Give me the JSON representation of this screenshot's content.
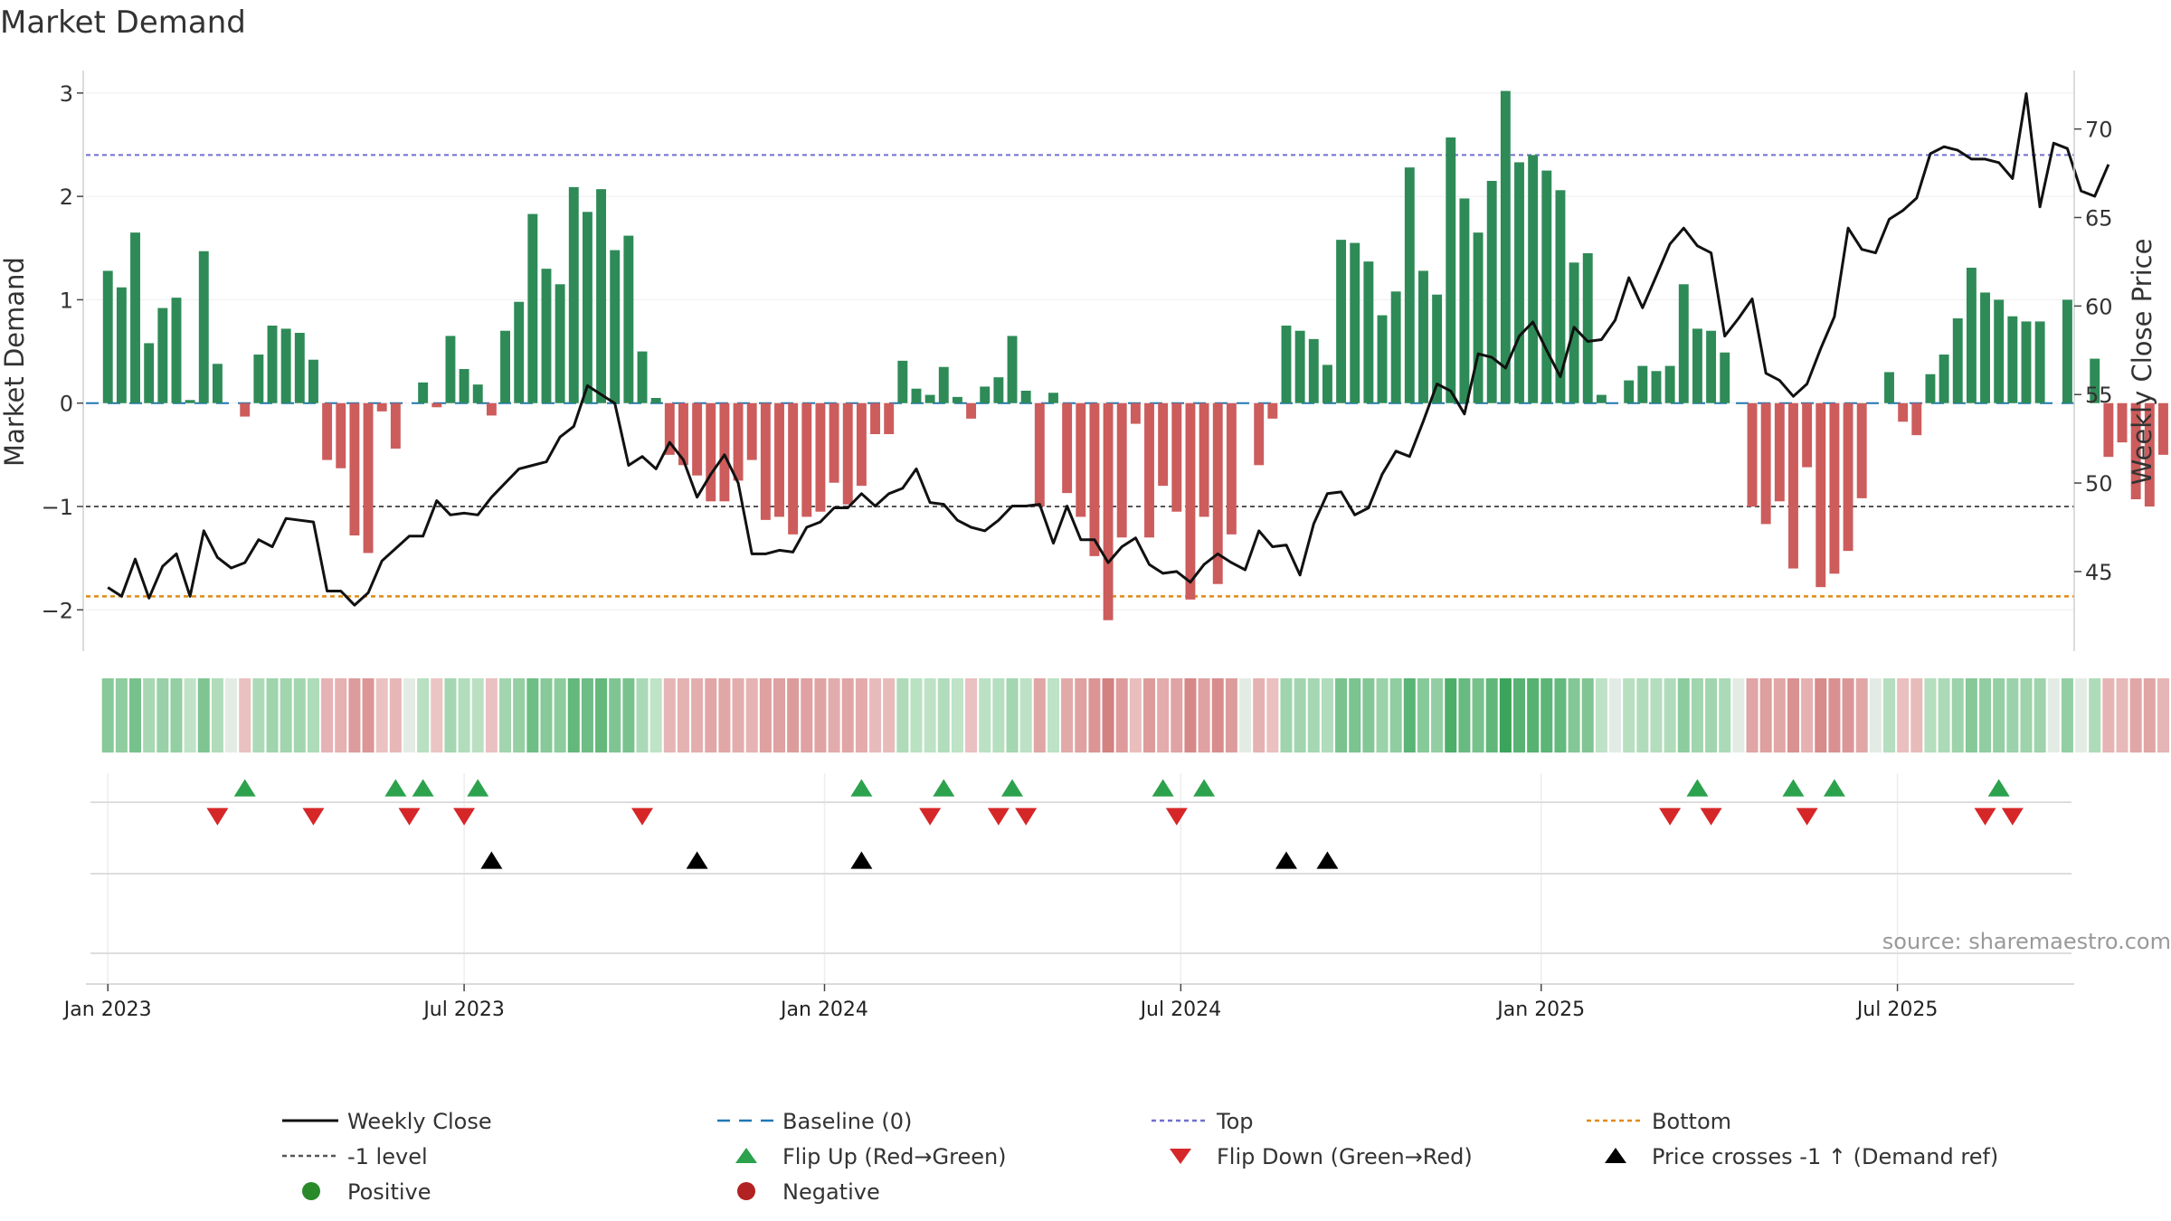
{
  "chart_data": {
    "type": "bar",
    "title": "Market Demand",
    "ylabel_left": "Market Demand",
    "ylabel_right": "Weekly Close Price",
    "left_axis": {
      "ylim": [
        -2.4,
        3.2
      ],
      "ticks": [
        -2,
        -1,
        0,
        1,
        2,
        3
      ],
      "tick_labels": [
        "−2",
        "−1",
        "0",
        "1",
        "2",
        "3"
      ]
    },
    "right_axis": {
      "ylim": [
        40.5,
        73.2
      ],
      "ticks": [
        45,
        50,
        55,
        60,
        65,
        70
      ],
      "tick_labels": [
        "45",
        "50",
        "55",
        "60",
        "65",
        "70"
      ]
    },
    "x_range_weeks": [
      -1.6,
      143.5
    ],
    "x_ticks": [
      {
        "label": "Jan 2023",
        "week": 0
      },
      {
        "label": "Jul 2023",
        "week": 26
      },
      {
        "label": "Jan 2024",
        "week": 52.3
      },
      {
        "label": "Jul 2024",
        "week": 78.3
      },
      {
        "label": "Jan 2025",
        "week": 104.6
      },
      {
        "label": "Jul 2025",
        "week": 130.6
      }
    ],
    "reference_lines": {
      "top": 2.4,
      "minus_one_level": -1,
      "bottom": -1.87,
      "baseline": 0
    },
    "demand": [
      1.28,
      1.12,
      1.65,
      0.58,
      0.92,
      1.02,
      0.03,
      1.47,
      0.38,
      0,
      -0.13,
      0.47,
      0.75,
      0.72,
      0.68,
      0.42,
      -0.55,
      -0.63,
      -1.28,
      -1.45,
      -0.08,
      -0.44,
      0,
      0.2,
      -0.04,
      0.65,
      0.33,
      0.18,
      -0.12,
      0.7,
      0.98,
      1.83,
      1.3,
      1.15,
      2.09,
      1.85,
      2.07,
      1.48,
      1.62,
      0.5,
      0.05,
      -0.5,
      -0.6,
      -0.7,
      -0.95,
      -0.95,
      -0.75,
      -0.55,
      -1.13,
      -1.1,
      -1.27,
      -1.1,
      -1.05,
      -0.77,
      -0.98,
      -0.8,
      -0.3,
      -0.3,
      0.41,
      0.14,
      0.08,
      0.35,
      0.06,
      -0.15,
      0.16,
      0.25,
      0.65,
      0.12,
      -1,
      0.1,
      -0.87,
      -1.1,
      -1.48,
      -2.1,
      -1.3,
      -0.2,
      -1.3,
      -0.8,
      -1.05,
      -1.9,
      -1.1,
      -1.75,
      -1.27,
      0,
      -0.6,
      -0.15,
      0.75,
      0.7,
      0.62,
      0.37,
      1.58,
      1.55,
      1.37,
      0.85,
      1.08,
      2.28,
      1.28,
      1.05,
      2.57,
      1.98,
      1.65,
      2.15,
      3.02,
      2.33,
      2.4,
      2.25,
      2.06,
      1.36,
      1.45,
      0.08,
      0,
      0.22,
      0.36,
      0.31,
      0.36,
      1.15,
      0.72,
      0.7,
      0.49,
      0,
      -1,
      -1.17,
      -0.95,
      -1.6,
      -0.62,
      -1.78,
      -1.65,
      -1.43,
      -0.92,
      0,
      0.3,
      -0.18,
      -0.31,
      0.28,
      0.47,
      0.82,
      1.31,
      1.07,
      1.0,
      0.84,
      0.79,
      0.79,
      0,
      1.0,
      0,
      0.43,
      -0.52,
      -0.38,
      -0.93,
      -1.0,
      -0.5
    ],
    "weekly_close": [
      44.1,
      43.6,
      45.7,
      43.5,
      45.3,
      46.0,
      43.6,
      47.3,
      45.8,
      45.2,
      45.5,
      46.8,
      46.4,
      48.0,
      47.9,
      47.8,
      43.9,
      43.9,
      43.1,
      43.8,
      45.6,
      46.3,
      47.0,
      47.0,
      49.0,
      48.2,
      48.3,
      48.2,
      49.2,
      50.0,
      50.8,
      51.0,
      51.2,
      52.6,
      53.2,
      55.5,
      55.0,
      54.5,
      51.0,
      51.5,
      50.8,
      52.3,
      51.3,
      49.2,
      50.5,
      51.6,
      50.0,
      46.0,
      46.0,
      46.2,
      46.1,
      47.5,
      47.8,
      48.6,
      48.6,
      49.4,
      48.7,
      49.4,
      49.7,
      50.8,
      48.9,
      48.8,
      47.9,
      47.5,
      47.3,
      47.9,
      48.7,
      48.7,
      48.8,
      46.6,
      48.7,
      46.8,
      46.8,
      45.5,
      46.4,
      46.9,
      45.4,
      44.9,
      45.0,
      44.4,
      45.4,
      46.0,
      45.5,
      45.1,
      47.3,
      46.4,
      46.5,
      44.8,
      47.7,
      49.4,
      49.5,
      48.2,
      48.6,
      50.5,
      51.8,
      51.5,
      53.5,
      55.6,
      55.2,
      53.9,
      57.3,
      57.1,
      56.5,
      58.3,
      59.1,
      57.5,
      56.0,
      58.8,
      58.0,
      58.1,
      59.2,
      61.6,
      59.9,
      61.7,
      63.5,
      64.4,
      63.4,
      63.0,
      58.3,
      59.3,
      60.4,
      56.2,
      55.8,
      54.9,
      55.6,
      57.6,
      59.4,
      64.4,
      63.2,
      63.0,
      64.9,
      65.4,
      66.1,
      68.6,
      69.0,
      68.8,
      68.3,
      68.3,
      68.1,
      67.2,
      72.0,
      65.6,
      69.2,
      68.9,
      66.5,
      66.2,
      68.0
    ],
    "flip_up_weeks": [
      10,
      21,
      23,
      27,
      55,
      61,
      66,
      77,
      80,
      116,
      123,
      126,
      138
    ],
    "flip_down_weeks": [
      8,
      15,
      22,
      26,
      39,
      60,
      65,
      67,
      78,
      114,
      117,
      124,
      137,
      139
    ],
    "price_crosses_weeks": [
      28,
      43,
      55,
      86,
      89
    ],
    "source_text": "source: sharemaestro.com",
    "legend": [
      {
        "label": "Weekly Close",
        "marker": "solid-line",
        "color": "#111111"
      },
      {
        "label": "Baseline (0)",
        "marker": "dashed-line",
        "color": "#1f77b4"
      },
      {
        "label": "Top",
        "marker": "dotted-line",
        "color": "#6f6fd0"
      },
      {
        "label": "Bottom",
        "marker": "dotted-line",
        "color": "#e08a14"
      },
      {
        "label": "-1 level",
        "marker": "dotted-line",
        "color": "#555555"
      },
      {
        "label": "Flip Up (Red→Green)",
        "marker": "triangle-up",
        "color": "#2ca24d"
      },
      {
        "label": "Flip Down (Green→Red)",
        "marker": "triangle-down",
        "color": "#d62728"
      },
      {
        "label": "Price crosses -1 ↑ (Demand ref)",
        "marker": "triangle-up",
        "color": "#000000"
      },
      {
        "label": "Positive",
        "marker": "circle",
        "color": "#2a8a2a"
      },
      {
        "label": "Negative",
        "marker": "circle",
        "color": "#b22222"
      }
    ],
    "colors": {
      "positive_bar": "#2e8b57",
      "negative_bar": "#cd5c5c",
      "price_line": "#111111"
    }
  }
}
